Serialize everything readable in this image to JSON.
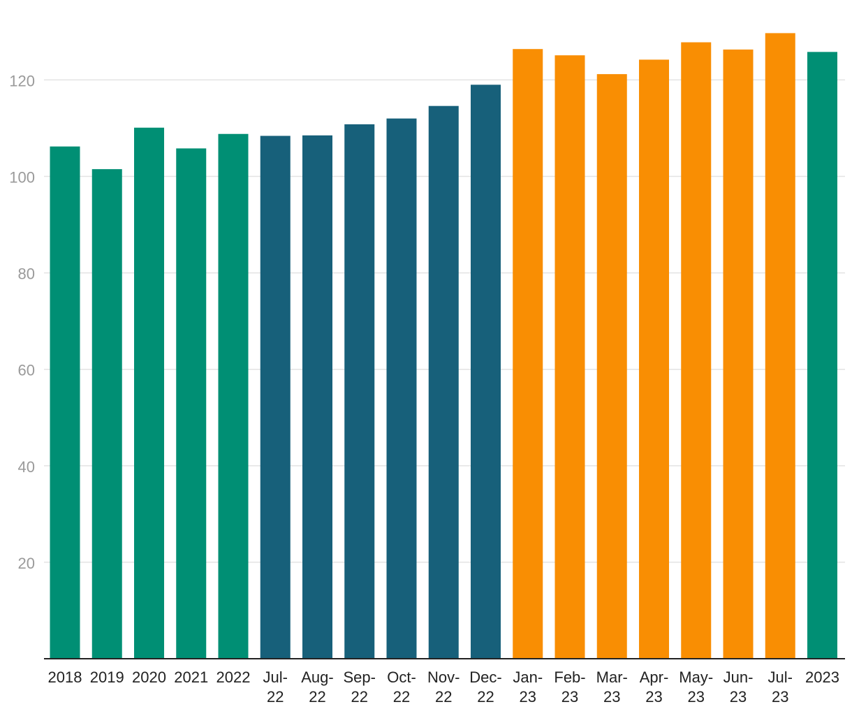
{
  "chart_data": {
    "type": "bar",
    "categories": [
      [
        "2018"
      ],
      [
        "2019"
      ],
      [
        "2020"
      ],
      [
        "2021"
      ],
      [
        "2022"
      ],
      [
        "Jul-",
        "22"
      ],
      [
        "Aug-",
        "22"
      ],
      [
        "Sep-",
        "22"
      ],
      [
        "Oct-",
        "22"
      ],
      [
        "Nov-",
        "22"
      ],
      [
        "Dec-",
        "22"
      ],
      [
        "Jan-",
        "23"
      ],
      [
        "Feb-",
        "23"
      ],
      [
        "Mar-",
        "23"
      ],
      [
        "Apr-",
        "23"
      ],
      [
        "May-",
        "23"
      ],
      [
        "Jun-",
        "23"
      ],
      [
        "Jul-",
        "23"
      ],
      [
        "2023"
      ]
    ],
    "values": [
      106.2,
      101.5,
      110.1,
      105.8,
      108.8,
      108.4,
      108.5,
      110.8,
      112.0,
      114.6,
      119.0,
      126.4,
      125.1,
      121.2,
      124.2,
      127.8,
      126.3,
      129.7,
      125.8
    ],
    "colors": [
      "#008f74",
      "#008f74",
      "#008f74",
      "#008f74",
      "#008f74",
      "#17607a",
      "#17607a",
      "#17607a",
      "#17607a",
      "#17607a",
      "#17607a",
      "#f98e03",
      "#f98e03",
      "#f98e03",
      "#f98e03",
      "#f98e03",
      "#f98e03",
      "#f98e03",
      "#008f74"
    ],
    "y_ticks": [
      "20",
      "40",
      "60",
      "80",
      "100",
      "120"
    ],
    "ylim": [
      0,
      133
    ],
    "grid": true,
    "title": "",
    "xlabel": "",
    "ylabel": ""
  }
}
